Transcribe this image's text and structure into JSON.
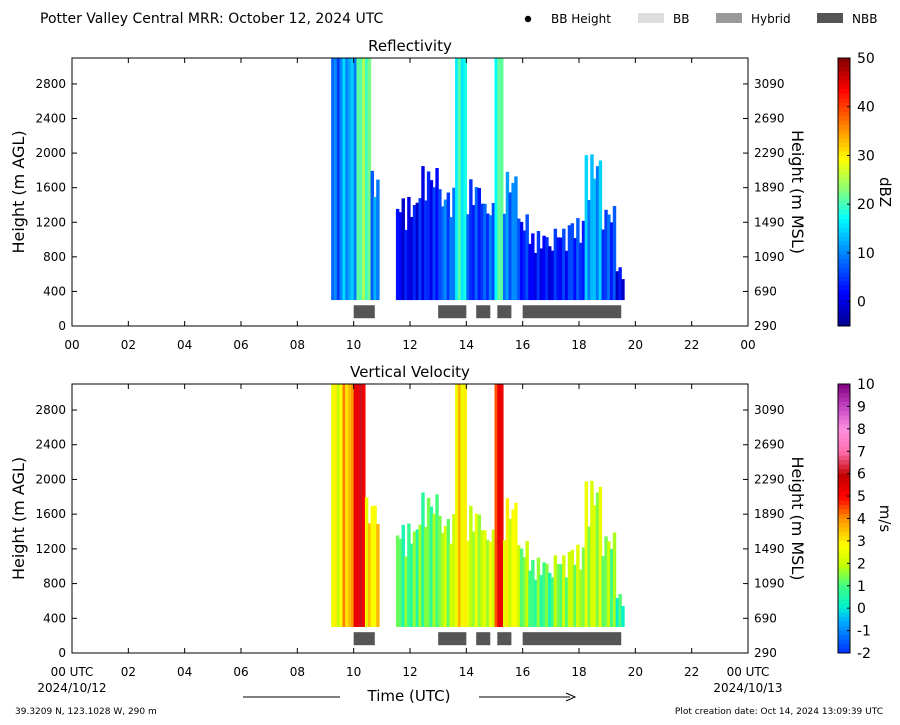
{
  "title": "Potter Valley Central MRR:  October 12, 2024 UTC",
  "legend": [
    {
      "label": "BB Height",
      "symbol": "dot",
      "color": "#000000"
    },
    {
      "label": "BB",
      "symbol": "box",
      "color": "#dddddd"
    },
    {
      "label": "Hybrid",
      "symbol": "box",
      "color": "#999999"
    },
    {
      "label": "NBB",
      "symbol": "box",
      "color": "#555555"
    }
  ],
  "footer": {
    "location": "39.3209 N, 123.1028 W, 290 m",
    "created": "Plot creation date: Oct 14, 2024 13:09:39 UTC",
    "xlabel": "Time (UTC)",
    "start_tick": "00 UTC",
    "start_date": "2024/10/12",
    "end_tick": "00 UTC",
    "end_date": "2024/10/13"
  },
  "chart_data": [
    {
      "type": "heatmap",
      "title": "Reflectivity",
      "ylabel": "Height (m AGL)",
      "ylabel_right": "Height (m MSL)",
      "xlim": [
        0,
        24
      ],
      "ylim": [
        0,
        3100
      ],
      "x_ticks": [
        "00",
        "02",
        "04",
        "06",
        "08",
        "10",
        "12",
        "14",
        "16",
        "18",
        "20",
        "22",
        "00"
      ],
      "y_ticks": [
        0,
        400,
        800,
        1200,
        1600,
        2000,
        2400,
        2800
      ],
      "y_ticks_right": [
        290,
        690,
        1090,
        1490,
        1890,
        2290,
        2690,
        3090
      ],
      "colorbar": {
        "label": "dBZ",
        "min": -5,
        "max": 50,
        "ticks": [
          0,
          10,
          20,
          30,
          40,
          50
        ]
      },
      "bb_segments": [
        {
          "start": 10.0,
          "end": 10.75,
          "class": "NBB"
        },
        {
          "start": 13.0,
          "end": 14.0,
          "class": "NBB"
        },
        {
          "start": 14.35,
          "end": 14.85,
          "class": "NBB"
        },
        {
          "start": 15.1,
          "end": 15.6,
          "class": "NBB"
        },
        {
          "start": 16.0,
          "end": 19.5,
          "class": "NBB"
        }
      ],
      "echo_segments": [
        {
          "start": 9.2,
          "end": 9.6,
          "top": 3100,
          "value": 8
        },
        {
          "start": 9.6,
          "end": 10.1,
          "top": 3100,
          "value": 12
        },
        {
          "start": 10.1,
          "end": 10.6,
          "top": 3100,
          "value": 22
        },
        {
          "start": 10.6,
          "end": 10.9,
          "top": 1800,
          "value": 10
        },
        {
          "start": 11.5,
          "end": 12.3,
          "top": 1500,
          "value": 1
        },
        {
          "start": 12.3,
          "end": 13.0,
          "top": 1850,
          "value": 3
        },
        {
          "start": 13.0,
          "end": 13.6,
          "top": 1600,
          "value": 8
        },
        {
          "start": 13.6,
          "end": 14.0,
          "top": 3100,
          "value": 18
        },
        {
          "start": 14.0,
          "end": 14.6,
          "top": 1700,
          "value": 5
        },
        {
          "start": 14.6,
          "end": 15.0,
          "top": 1450,
          "value": 7
        },
        {
          "start": 15.0,
          "end": 15.3,
          "top": 3100,
          "value": 20
        },
        {
          "start": 15.3,
          "end": 15.8,
          "top": 1800,
          "value": 9
        },
        {
          "start": 15.8,
          "end": 16.3,
          "top": 1300,
          "value": 4
        },
        {
          "start": 16.3,
          "end": 17.0,
          "top": 1100,
          "value": 2
        },
        {
          "start": 17.0,
          "end": 17.6,
          "top": 1150,
          "value": 3
        },
        {
          "start": 17.6,
          "end": 18.2,
          "top": 1250,
          "value": 5
        },
        {
          "start": 18.2,
          "end": 18.8,
          "top": 2000,
          "value": 12
        },
        {
          "start": 18.8,
          "end": 19.3,
          "top": 1400,
          "value": 6
        },
        {
          "start": 19.3,
          "end": 19.6,
          "top": 700,
          "value": 0
        }
      ]
    },
    {
      "type": "heatmap",
      "title": "Vertical Velocity",
      "ylabel": "Height (m AGL)",
      "ylabel_right": "Height (m MSL)",
      "xlim": [
        0,
        24
      ],
      "ylim": [
        0,
        3100
      ],
      "x_ticks": [
        "00 UTC",
        "02",
        "04",
        "06",
        "08",
        "10",
        "12",
        "14",
        "16",
        "18",
        "20",
        "22",
        "00 UTC"
      ],
      "y_ticks": [
        0,
        400,
        800,
        1200,
        1600,
        2000,
        2400,
        2800
      ],
      "y_ticks_right": [
        290,
        690,
        1090,
        1490,
        1890,
        2290,
        2690,
        3090
      ],
      "colorbar": {
        "label": "m/s",
        "min": -2,
        "max": 10,
        "ticks": [
          -2,
          -1,
          0,
          1,
          2,
          3,
          4,
          5,
          6,
          7,
          8,
          9,
          10
        ]
      },
      "bb_segments": [
        {
          "start": 10.0,
          "end": 10.75,
          "class": "NBB"
        },
        {
          "start": 13.0,
          "end": 14.0,
          "class": "NBB"
        },
        {
          "start": 14.35,
          "end": 14.85,
          "class": "NBB"
        },
        {
          "start": 15.1,
          "end": 15.6,
          "class": "NBB"
        },
        {
          "start": 16.0,
          "end": 19.5,
          "class": "NBB"
        }
      ],
      "echo_segments": [
        {
          "start": 9.2,
          "end": 9.6,
          "top": 3100,
          "value": 2.5
        },
        {
          "start": 9.6,
          "end": 10.0,
          "top": 3100,
          "value": 3.5
        },
        {
          "start": 10.0,
          "end": 10.4,
          "top": 3100,
          "value": 5.5
        },
        {
          "start": 10.4,
          "end": 10.9,
          "top": 1800,
          "value": 3
        },
        {
          "start": 11.5,
          "end": 12.3,
          "top": 1500,
          "value": 1
        },
        {
          "start": 12.3,
          "end": 13.0,
          "top": 1850,
          "value": 1.2
        },
        {
          "start": 13.0,
          "end": 13.6,
          "top": 1600,
          "value": 1.8
        },
        {
          "start": 13.6,
          "end": 14.0,
          "top": 3100,
          "value": 3
        },
        {
          "start": 14.0,
          "end": 14.6,
          "top": 1700,
          "value": 2
        },
        {
          "start": 14.6,
          "end": 15.0,
          "top": 1450,
          "value": 2.2
        },
        {
          "start": 15.0,
          "end": 15.3,
          "top": 3100,
          "value": 5
        },
        {
          "start": 15.3,
          "end": 15.8,
          "top": 1800,
          "value": 2.5
        },
        {
          "start": 15.8,
          "end": 16.3,
          "top": 1300,
          "value": 1.5
        },
        {
          "start": 16.3,
          "end": 17.0,
          "top": 1100,
          "value": 1
        },
        {
          "start": 17.0,
          "end": 17.6,
          "top": 1150,
          "value": 1.5
        },
        {
          "start": 17.6,
          "end": 18.2,
          "top": 1250,
          "value": 1.8
        },
        {
          "start": 18.2,
          "end": 18.8,
          "top": 2000,
          "value": 2
        },
        {
          "start": 18.8,
          "end": 19.3,
          "top": 1400,
          "value": 1.5
        },
        {
          "start": 19.3,
          "end": 19.6,
          "top": 700,
          "value": 0.5
        }
      ]
    }
  ]
}
